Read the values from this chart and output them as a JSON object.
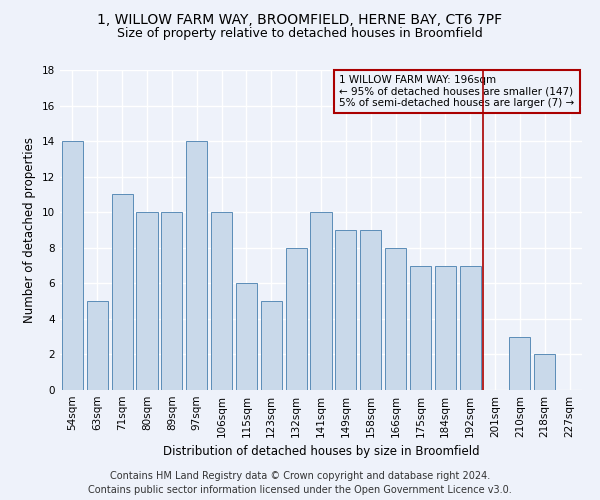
{
  "title_line1": "1, WILLOW FARM WAY, BROOMFIELD, HERNE BAY, CT6 7PF",
  "title_line2": "Size of property relative to detached houses in Broomfield",
  "xlabel": "Distribution of detached houses by size in Broomfield",
  "ylabel": "Number of detached properties",
  "categories": [
    "54sqm",
    "63sqm",
    "71sqm",
    "80sqm",
    "89sqm",
    "97sqm",
    "106sqm",
    "115sqm",
    "123sqm",
    "132sqm",
    "141sqm",
    "149sqm",
    "158sqm",
    "166sqm",
    "175sqm",
    "184sqm",
    "192sqm",
    "201sqm",
    "210sqm",
    "218sqm",
    "227sqm"
  ],
  "values": [
    14,
    5,
    11,
    10,
    10,
    14,
    10,
    6,
    5,
    8,
    10,
    9,
    9,
    8,
    7,
    7,
    7,
    0,
    3,
    2,
    0
  ],
  "bar_color": "#C9D9EA",
  "bar_edge_color": "#5B8DB8",
  "background_color": "#EEF2FA",
  "grid_color": "#FFFFFF",
  "vline_x_index": 16.5,
  "vline_color": "#AA0000",
  "legend_text_line1": "1 WILLOW FARM WAY: 196sqm",
  "legend_text_line2": "← 95% of detached houses are smaller (147)",
  "legend_text_line3": "5% of semi-detached houses are larger (7) →",
  "legend_box_color": "#AA0000",
  "ylim": [
    0,
    18
  ],
  "yticks": [
    0,
    2,
    4,
    6,
    8,
    10,
    12,
    14,
    16,
    18
  ],
  "footnote_line1": "Contains HM Land Registry data © Crown copyright and database right 2024.",
  "footnote_line2": "Contains public sector information licensed under the Open Government Licence v3.0.",
  "title_fontsize": 10,
  "subtitle_fontsize": 9,
  "axis_label_fontsize": 8.5,
  "tick_fontsize": 7.5,
  "legend_fontsize": 7.5,
  "footnote_fontsize": 7
}
